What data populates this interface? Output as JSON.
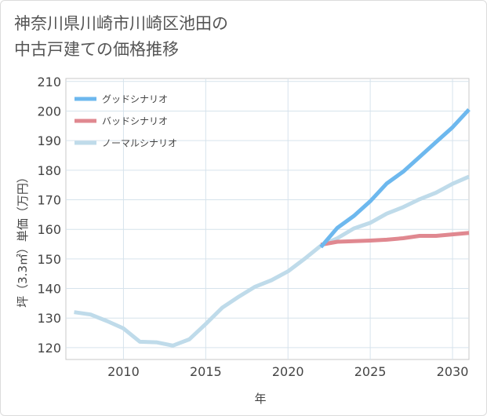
{
  "title": {
    "line1": "神奈川県川崎市川崎区池田の",
    "line2": "中古戸建ての価格推移"
  },
  "chart_data": {
    "type": "line",
    "xlabel": "年",
    "ylabel": "坪（3.3㎡）単価（万円）",
    "xlim": [
      2006.5,
      2031
    ],
    "ylim": [
      116,
      211
    ],
    "x_ticks": [
      2010,
      2015,
      2020,
      2025,
      2030
    ],
    "y_ticks": [
      120,
      130,
      140,
      150,
      160,
      170,
      180,
      190,
      200,
      210
    ],
    "grid": true,
    "legend_position": "top-left",
    "series": [
      {
        "name": "グッドシナリオ",
        "color": "#6db8ee",
        "points": [
          [
            2022,
            154
          ],
          [
            2023,
            160.5
          ],
          [
            2024,
            164.5
          ],
          [
            2025,
            169.5
          ],
          [
            2026,
            175.5
          ],
          [
            2027,
            179.5
          ],
          [
            2028,
            184.5
          ],
          [
            2029,
            189.5
          ],
          [
            2030,
            194.5
          ],
          [
            2031,
            200.5
          ]
        ]
      },
      {
        "name": "バッドシナリオ",
        "color": "#e08890",
        "points": [
          [
            2022,
            154.8
          ],
          [
            2023,
            155.8
          ],
          [
            2024,
            156
          ],
          [
            2025,
            156.2
          ],
          [
            2026,
            156.5
          ],
          [
            2027,
            157
          ],
          [
            2028,
            157.8
          ],
          [
            2029,
            157.8
          ],
          [
            2030,
            158.3
          ],
          [
            2031,
            158.8
          ]
        ]
      },
      {
        "name": "ノーマルシナリオ",
        "color": "#bfdbea",
        "points": [
          [
            2007,
            132
          ],
          [
            2008,
            131.2
          ],
          [
            2009,
            129
          ],
          [
            2010,
            126.5
          ],
          [
            2011,
            122
          ],
          [
            2012,
            121.8
          ],
          [
            2013,
            120.7
          ],
          [
            2014,
            122.8
          ],
          [
            2015,
            128
          ],
          [
            2016,
            133.5
          ],
          [
            2017,
            137.2
          ],
          [
            2018,
            140.6
          ],
          [
            2019,
            142.8
          ],
          [
            2020,
            145.8
          ],
          [
            2021,
            150
          ],
          [
            2022,
            154.5
          ],
          [
            2023,
            157
          ],
          [
            2024,
            160.3
          ],
          [
            2025,
            162.2
          ],
          [
            2026,
            165.3
          ],
          [
            2027,
            167.5
          ],
          [
            2028,
            170.2
          ],
          [
            2029,
            172.4
          ],
          [
            2030,
            175.4
          ],
          [
            2031,
            177.8
          ]
        ]
      }
    ]
  }
}
